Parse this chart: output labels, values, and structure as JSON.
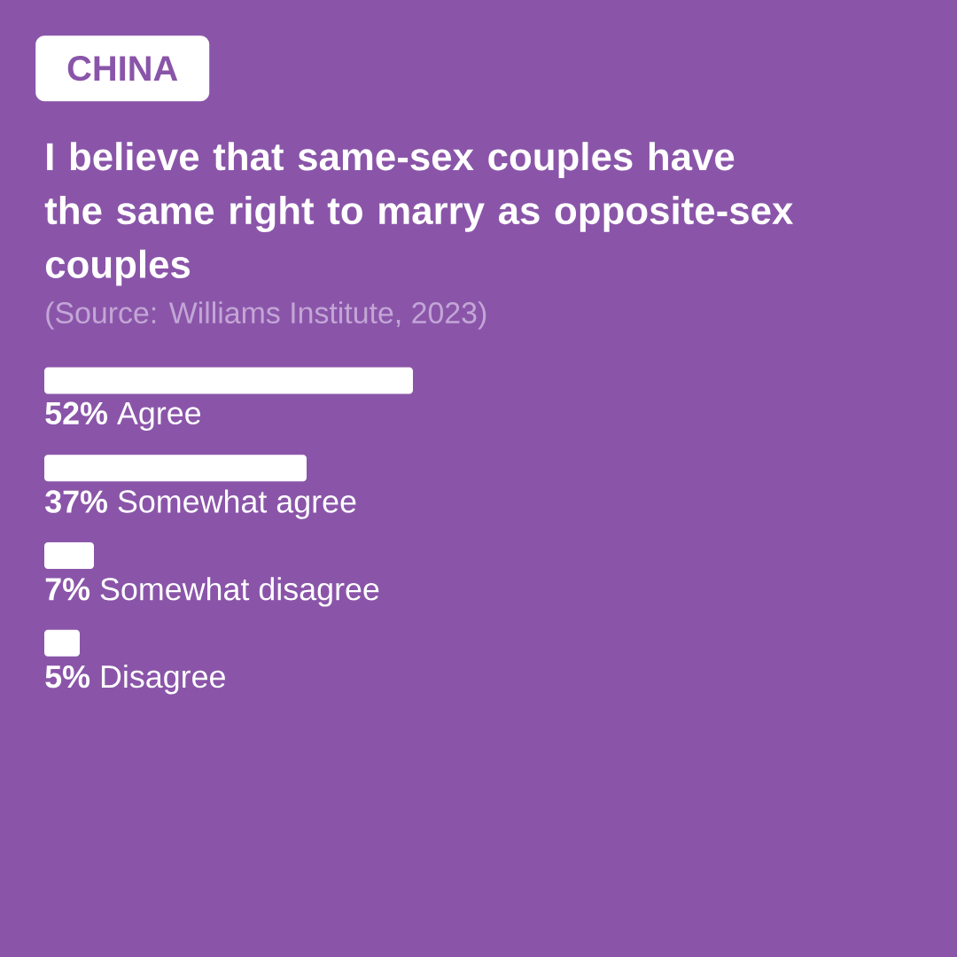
{
  "chart_data": {
    "type": "bar",
    "orientation": "horizontal",
    "subtitle": "CHINA",
    "title": "I believe that same-sex couples have the same right to marry as opposite-sex couples",
    "annotations": [
      "(Source: Williams Institute, 2023)"
    ],
    "categories": [
      "Agree",
      "Somewhat agree",
      "Somewhat disagree",
      "Disagree"
    ],
    "values": [
      52,
      37,
      7,
      5
    ],
    "value_labels": [
      "52%",
      "37%",
      "7%",
      "5%"
    ],
    "color": "#ffffff"
  }
}
